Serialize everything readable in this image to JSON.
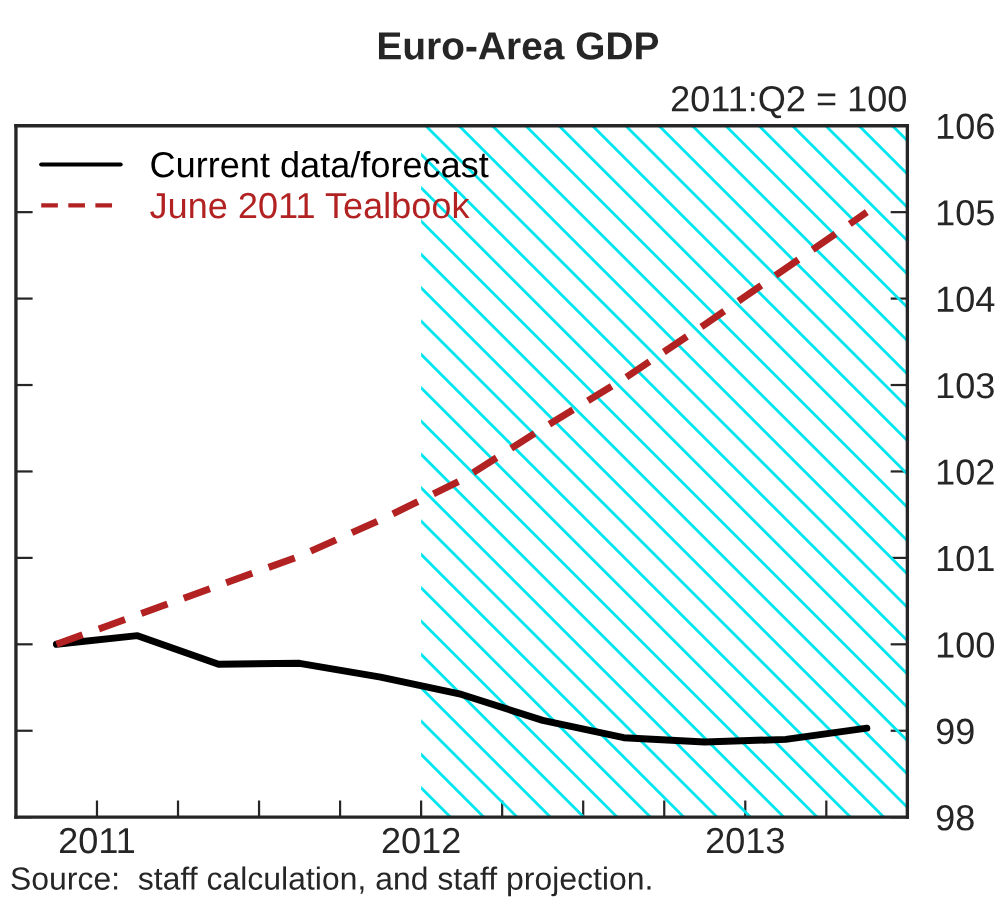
{
  "chart_data": {
    "type": "line",
    "title": "Euro-Area GDP",
    "ylabel": "2011:Q2 = 100",
    "x": [
      2010.875,
      2011.125,
      2011.375,
      2011.625,
      2011.875,
      2012.125,
      2012.375,
      2012.625,
      2012.875,
      2013.125,
      2013.375
    ],
    "series": [
      {
        "name": "Current data/forecast",
        "color": "#000000",
        "line_style": "solid",
        "values": [
          100,
          100.1,
          99.77,
          99.78,
          99.62,
          99.42,
          99.12,
          98.92,
          98.87,
          98.9,
          99.03
        ]
      },
      {
        "name": "June 2011 Tealbook",
        "color": "#b22222",
        "line_style": "dashed",
        "values": [
          100,
          100.34,
          100.68,
          101.02,
          101.44,
          101.9,
          102.5,
          103.07,
          103.7,
          104.35,
          105.0
        ]
      }
    ],
    "xlim": [
      2010.75,
      2013.5
    ],
    "xticks": [
      {
        "value": 2011,
        "label": "2011"
      },
      {
        "value": 2011.25,
        "label": null
      },
      {
        "value": 2011.5,
        "label": null
      },
      {
        "value": 2011.75,
        "label": null
      },
      {
        "value": 2012,
        "label": "2012"
      },
      {
        "value": 2012.25,
        "label": null
      },
      {
        "value": 2012.5,
        "label": null
      },
      {
        "value": 2012.75,
        "label": null
      },
      {
        "value": 2013,
        "label": "2013"
      },
      {
        "value": 2013.25,
        "label": null
      }
    ],
    "ylim": [
      98,
      106
    ],
    "yticks": [
      98,
      99,
      100,
      101,
      102,
      103,
      104,
      105,
      106
    ],
    "bands": [
      {
        "axis": "x",
        "from": 2012,
        "to": 2013.5,
        "color": "#00e5ee"
      }
    ],
    "legend": "top left",
    "grid": false,
    "annotations": [
      "Source:  staff calculation, and staff projection."
    ]
  }
}
